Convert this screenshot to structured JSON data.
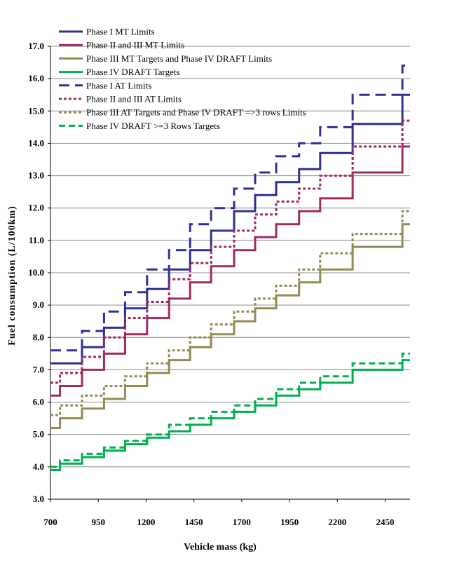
{
  "chart_data": {
    "type": "line",
    "title": "",
    "xlabel": "Vehicle mass (kg)",
    "ylabel": "Fuel consumption (L/100km)",
    "xlim": [
      700,
      2580
    ],
    "ylim": [
      3.0,
      17.0
    ],
    "xticks": [
      "700",
      "950",
      "1200",
      "1450",
      "1700",
      "1950",
      "2200",
      "2450"
    ],
    "yticks": [
      "3.0",
      "4.0",
      "5.0",
      "6.0",
      "7.0",
      "8.0",
      "9.0",
      "10.0",
      "11.0",
      "12.0",
      "13.0",
      "14.0",
      "15.0",
      "16.0",
      "17.0"
    ],
    "grid": "horizontal",
    "legend_position": "top-left",
    "step_boundaries": [
      700,
      750,
      865,
      980,
      1090,
      1205,
      1320,
      1430,
      1540,
      1660,
      1770,
      1880,
      2000,
      2110,
      2280,
      2510,
      2540
    ],
    "series": [
      {
        "name": "Phase I MT Limits",
        "color": "#2e3192",
        "style": "solid",
        "values": [
          7.2,
          7.2,
          7.7,
          8.3,
          8.9,
          9.5,
          10.1,
          10.7,
          11.3,
          11.9,
          12.4,
          12.8,
          13.2,
          13.7,
          14.6,
          14.6,
          15.5
        ]
      },
      {
        "name": "Phase II and III MT Limits",
        "color": "#9e2b62",
        "style": "solid",
        "values": [
          6.2,
          6.5,
          7.0,
          7.5,
          8.1,
          8.6,
          9.2,
          9.7,
          10.2,
          10.7,
          11.1,
          11.5,
          11.9,
          12.3,
          13.1,
          13.1,
          13.9
        ]
      },
      {
        "name": "Phase III MT Targets and Phase IV DRAFT Limits",
        "color": "#948a54",
        "style": "solid",
        "values": [
          5.2,
          5.5,
          5.8,
          6.1,
          6.5,
          6.9,
          7.3,
          7.7,
          8.1,
          8.5,
          8.9,
          9.3,
          9.7,
          10.1,
          10.8,
          10.8,
          11.5
        ]
      },
      {
        "name": "Phase IV DRAFT Targets",
        "color": "#00b050",
        "style": "solid",
        "values": [
          3.9,
          4.1,
          4.3,
          4.5,
          4.7,
          4.9,
          5.1,
          5.3,
          5.5,
          5.7,
          5.9,
          6.2,
          6.4,
          6.6,
          7.0,
          7.0,
          7.3
        ]
      },
      {
        "name": "Phase I AT Limits",
        "color": "#2e3192",
        "style": "longdash",
        "values": [
          7.6,
          7.6,
          8.2,
          8.8,
          9.4,
          10.1,
          10.7,
          11.5,
          12.0,
          12.6,
          13.1,
          13.6,
          14.0,
          14.5,
          15.5,
          15.5,
          16.4
        ]
      },
      {
        "name": "Phase II and III AT Limits",
        "color": "#9e2b62",
        "style": "shortdash",
        "values": [
          6.6,
          6.9,
          7.4,
          8.0,
          8.6,
          9.1,
          9.8,
          10.3,
          10.8,
          11.3,
          11.8,
          12.2,
          12.6,
          13.0,
          13.9,
          13.9,
          14.7
        ]
      },
      {
        "name": "Phase III AT Targets and Phase IV DRAFT =>3 rows Limits",
        "color": "#948a54",
        "style": "shortdash",
        "values": [
          5.6,
          5.9,
          6.2,
          6.5,
          6.8,
          7.2,
          7.6,
          8.0,
          8.4,
          8.8,
          9.2,
          9.6,
          10.1,
          10.6,
          11.2,
          11.2,
          11.9
        ]
      },
      {
        "name": "Phase IV DRAFT >=3 Rows Targets",
        "color": "#00b050",
        "style": "dash",
        "values": [
          4.0,
          4.2,
          4.4,
          4.6,
          4.8,
          5.0,
          5.3,
          5.5,
          5.7,
          5.9,
          6.1,
          6.4,
          6.6,
          6.8,
          7.2,
          7.2,
          7.5
        ]
      }
    ]
  }
}
